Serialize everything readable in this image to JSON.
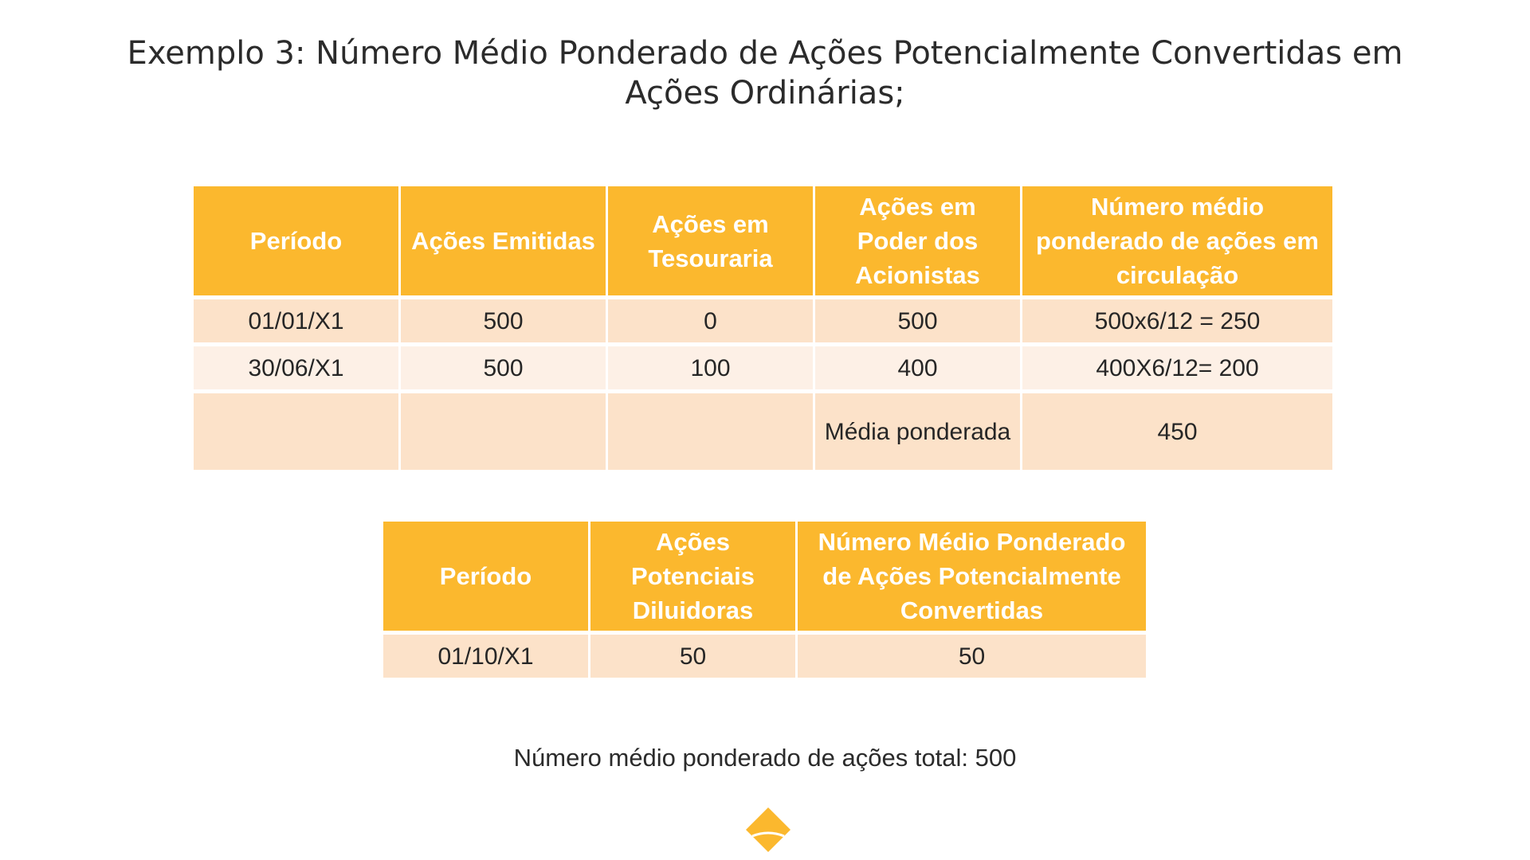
{
  "title": "Exemplo 3: Número Médio Ponderado de Ações Potencialmente Convertidas em Ações Ordinárias;",
  "table1": {
    "headers": [
      "Período",
      "Ações Emitidas",
      "Ações em Tesouraria",
      "Ações em Poder dos Acionistas",
      "Número médio ponderado de ações em circulação"
    ],
    "rows": [
      [
        "01/01/X1",
        "500",
        "0",
        "500",
        "500x6/12 = 250"
      ],
      [
        "30/06/X1",
        "500",
        "100",
        "400",
        "400X6/12= 200"
      ],
      [
        "",
        "",
        "",
        "Média ponderada",
        "450"
      ]
    ]
  },
  "table2": {
    "headers": [
      "Período",
      "Ações Potenciais Diluidoras",
      "Número Médio Ponderado de Ações Potencialmente Convertidas"
    ],
    "rows": [
      [
        "01/10/X1",
        "50",
        "50"
      ]
    ]
  },
  "footer_text": "Número médio ponderado de ações total: 500",
  "colors": {
    "header_bg": "#fbb82e",
    "row_odd": "#fce2c9",
    "row_even": "#fdf0e6",
    "logo": "#fbb82e"
  },
  "logo_icon": "diamond-logo-icon"
}
